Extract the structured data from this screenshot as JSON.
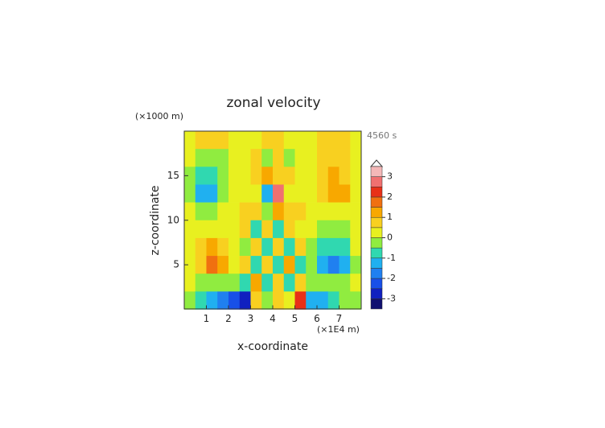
{
  "chart_data": {
    "type": "contour",
    "title": "zonal velocity",
    "x_label": "x-coordinate",
    "y_label": "z-coordinate",
    "x_unit": "(×1E4 m)",
    "y_unit": "(×1000 m)",
    "annotation": "4560 s",
    "xlim": [
      0,
      8
    ],
    "ylim": [
      0,
      20
    ],
    "xticks": [
      1,
      2,
      3,
      4,
      5,
      6,
      7
    ],
    "yticks": [
      5,
      10,
      15
    ],
    "x": [
      0.25,
      0.75,
      1.25,
      1.75,
      2.25,
      2.75,
      3.25,
      3.75,
      4.25,
      4.75,
      5.25,
      5.75,
      6.25,
      6.75,
      7.25,
      7.75
    ],
    "y": [
      19,
      17,
      15,
      13,
      11,
      9,
      7,
      5,
      3,
      1
    ],
    "z": [
      [
        0.2,
        0.5,
        0.8,
        0.7,
        0.4,
        0.3,
        0.1,
        0.5,
        0.5,
        0.1,
        0.3,
        0.4,
        0.7,
        0.8,
        0.5,
        0.2
      ],
      [
        0,
        -0.3,
        -0.4,
        -0.1,
        0.2,
        0.3,
        0.6,
        -0.4,
        0.6,
        -0.4,
        0.3,
        0.2,
        0.6,
        0.9,
        0.6,
        0.2
      ],
      [
        -0.3,
        -0.9,
        -1.0,
        -0.5,
        0,
        0.2,
        0.5,
        1.2,
        0.8,
        0.5,
        0.2,
        0.3,
        0.8,
        1.1,
        0.9,
        0.3
      ],
      [
        -0.4,
        -1.3,
        -1.1,
        -0.5,
        0.1,
        0.3,
        0.4,
        -1.2,
        2.5,
        0.3,
        0.4,
        0.3,
        0.8,
        1.2,
        1.0,
        0.3
      ],
      [
        0,
        -0.3,
        -0.3,
        0,
        0.2,
        0.5,
        0.7,
        -0.5,
        1.0,
        0.7,
        0.5,
        0.2,
        0.1,
        0.1,
        0.1,
        0.2
      ],
      [
        0.2,
        0.3,
        0.4,
        0.3,
        0.2,
        0.7,
        -0.6,
        0.9,
        -0.6,
        0.8,
        0.2,
        0.2,
        -0.1,
        -0.3,
        -0.2,
        0.1
      ],
      [
        0.2,
        0.7,
        1.0,
        0.8,
        0.2,
        -0.5,
        0.9,
        -0.6,
        0.9,
        -0.7,
        0.7,
        -0.3,
        -0.8,
        -1.0,
        -0.7,
        0
      ],
      [
        0.3,
        0.9,
        1.6,
        1.2,
        0.3,
        0.8,
        -0.8,
        0.9,
        -0.9,
        1.0,
        -0.6,
        -0.4,
        -1.2,
        -1.8,
        -1.2,
        -0.2
      ],
      [
        0.1,
        -0.3,
        -0.5,
        -0.4,
        -0.2,
        -0.7,
        1.0,
        -0.6,
        0.9,
        -0.8,
        0.8,
        -0.3,
        -0.2,
        -0.3,
        -0.2,
        0
      ],
      [
        -0.4,
        -1.0,
        -1.5,
        -1.8,
        -2.2,
        -2.6,
        0.5,
        -0.4,
        0.6,
        0.3,
        2.3,
        -1.4,
        -1.5,
        -1.0,
        -0.5,
        -0.2
      ]
    ],
    "levels": [
      -3.5,
      -3,
      -2.5,
      -2,
      -1.5,
      -1,
      -0.5,
      0,
      0.5,
      1,
      1.5,
      2,
      2.5,
      3,
      3.5
    ],
    "colors": [
      "#101070",
      "#1020c0",
      "#1850e8",
      "#2080f0",
      "#20b0f0",
      "#30d8b0",
      "#90ec40",
      "#e8f020",
      "#f8d020",
      "#f8a800",
      "#f07010",
      "#e83018",
      "#f07070",
      "#f4b8b8"
    ],
    "colorbar_ticks": [
      -3,
      -2,
      -1,
      0,
      1,
      2,
      3
    ]
  }
}
